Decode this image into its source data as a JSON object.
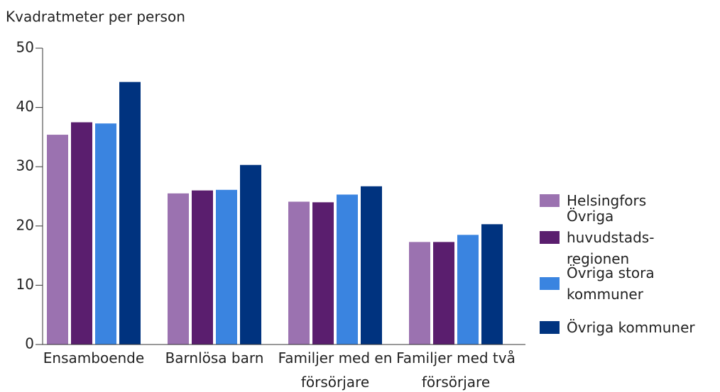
{
  "chart_data": {
    "type": "bar",
    "title": "Kvadratmeter per person",
    "categories": [
      "Ensamboende",
      "Barnlösa barn",
      "Familjer med en försörjare",
      "Familjer med två försörjare"
    ],
    "series": [
      {
        "name": "Helsingfors",
        "color": "#9b72b0",
        "values": [
          35.4,
          25.5,
          24.1,
          17.3
        ]
      },
      {
        "name": "Övriga huvudstads-regionen",
        "color": "#5a1e6e",
        "values": [
          37.5,
          26.0,
          24.0,
          17.3
        ]
      },
      {
        "name": "Övriga stora kommuner",
        "color": "#3a84e0",
        "values": [
          37.3,
          26.1,
          25.3,
          18.5
        ]
      },
      {
        "name": "Övriga kommuner",
        "color": "#00337f",
        "values": [
          44.3,
          30.3,
          26.7,
          20.3
        ]
      }
    ],
    "ylim": [
      0,
      50
    ],
    "yticks": [
      0,
      10,
      20,
      30,
      40,
      50
    ]
  }
}
